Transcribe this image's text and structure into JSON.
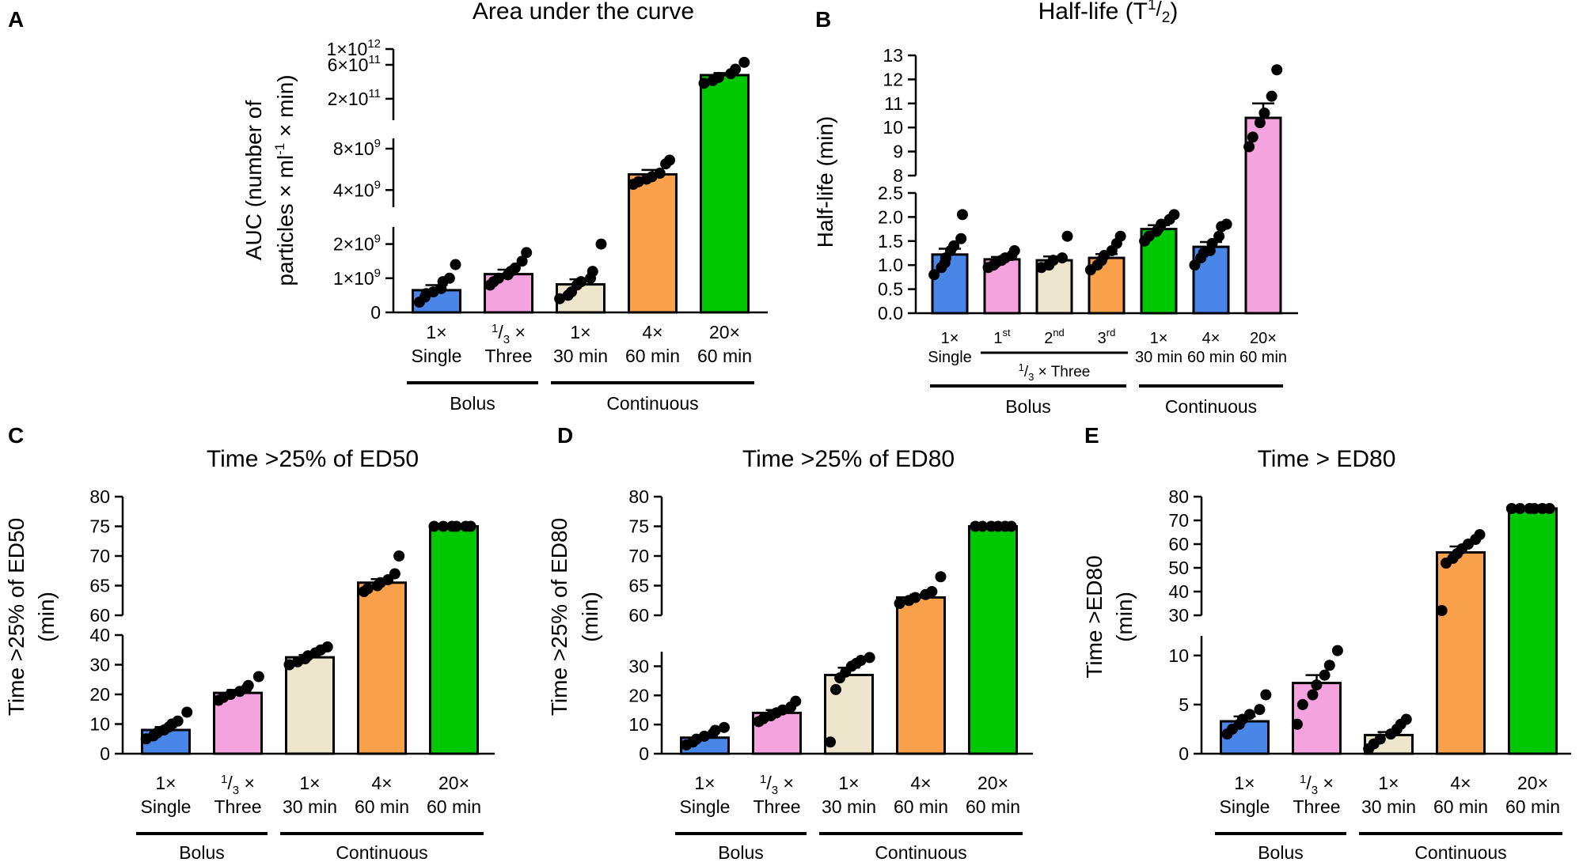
{
  "colors": {
    "blue": "#4a86e8",
    "pink": "#f5a3de",
    "cream": "#ede6cc",
    "orange": "#f9a04a",
    "green": "#00c800",
    "axis": "#000000"
  },
  "chart_data": [
    {
      "panel": "A",
      "type": "bar",
      "title": "Area under the curve",
      "ylabel_line1": "AUC (number of",
      "ylabel_line2": "particles × ml",
      "ylabel_sup": "-1",
      "ylabel_tail": " × min)",
      "categories": [
        {
          "top": "1×",
          "bottom": "Single",
          "frac": ""
        },
        {
          "top": "×",
          "bottom": "Three",
          "frac": "1/3"
        },
        {
          "top": "1×",
          "bottom": "30 min",
          "frac": ""
        },
        {
          "top": "4×",
          "bottom": "60 min",
          "frac": ""
        },
        {
          "top": "20×",
          "bottom": "60 min",
          "frac": ""
        }
      ],
      "bar_colors": [
        "blue",
        "pink",
        "cream",
        "orange",
        "green"
      ],
      "values": [
        650000000.0,
        1120000000.0,
        820000000.0,
        5200000000.0,
        430000000000.0
      ],
      "errors": [
        150000000.0,
        130000000.0,
        150000000.0,
        400000000.0,
        30000000000.0
      ],
      "points": [
        [
          300000000.0,
          450000000.0,
          550000000.0,
          600000000.0,
          700000000.0,
          900000000.0,
          1000000000.0,
          1400000000.0
        ],
        [
          800000000.0,
          900000000.0,
          1000000000.0,
          1100000000.0,
          1200000000.0,
          1300000000.0,
          1500000000.0,
          1750000000.0
        ],
        [
          400000000.0,
          500000000.0,
          600000000.0,
          800000000.0,
          900000000.0,
          1000000000.0,
          1200000000.0,
          2000000000.0
        ],
        [
          4400000000.0,
          4600000000.0,
          4800000000.0,
          5000000000.0,
          5300000000.0,
          6200000000.0,
          6600000000.0
        ],
        [
          330000000000.0,
          360000000000.0,
          400000000000.0,
          450000000000.0,
          520000000000.0,
          650000000000.0
        ]
      ],
      "segments": [
        {
          "range": [
            0,
            2500000000.0
          ],
          "ticks": [
            0,
            1000000000.0,
            2000000000.0
          ],
          "labels": [
            [
              "0",
              ""
            ],
            [
              "1×10",
              "9"
            ],
            [
              "2×10",
              "9"
            ]
          ]
        },
        {
          "range": [
            3000000000.0,
            9500000000.0
          ],
          "ticks": [
            4000000000.0,
            8000000000.0
          ],
          "labels": [
            [
              "4×10",
              "9"
            ],
            [
              "8×10",
              "9"
            ]
          ]
        },
        {
          "range": [
            100000000000.0,
            1000000000000.0
          ],
          "ticks": [
            200000000000.0,
            600000000000.0,
            1000000000000.0
          ],
          "labels": [
            [
              "2×10",
              "11"
            ],
            [
              "6×10",
              "11"
            ],
            [
              "1×10",
              "12"
            ]
          ]
        }
      ],
      "groups": [
        {
          "label": "Bolus",
          "from": 0,
          "to": 1
        },
        {
          "label": "Continuous",
          "from": 2,
          "to": 4
        }
      ]
    },
    {
      "panel": "B",
      "type": "bar",
      "title": "Half-life (T",
      "title_sup": "1",
      "title_sub": "2",
      "title_end": ")",
      "ylabel": "Half-life (min)",
      "categories": [
        {
          "top": "1×",
          "bottom": "Single",
          "ord": ""
        },
        {
          "top": "1",
          "bottom": "",
          "ord": "st"
        },
        {
          "top": "2",
          "bottom": "",
          "ord": "nd"
        },
        {
          "top": "3",
          "bottom": "",
          "ord": "rd"
        },
        {
          "top": "1×",
          "bottom": "30 min",
          "ord": ""
        },
        {
          "top": "4×",
          "bottom": "60 min",
          "ord": ""
        },
        {
          "top": "20×",
          "bottom": "60 min",
          "ord": ""
        }
      ],
      "subgroup": {
        "label": "× Three",
        "frac": "1/3",
        "from": 1,
        "to": 3
      },
      "bar_colors": [
        "blue",
        "pink",
        "cream",
        "orange",
        "green",
        "blue",
        "pink"
      ],
      "values": [
        1.22,
        1.12,
        1.1,
        1.15,
        1.75,
        1.38,
        10.4
      ],
      "errors": [
        0.12,
        0.05,
        0.08,
        0.08,
        0.08,
        0.1,
        0.6
      ],
      "points": [
        [
          0.8,
          0.95,
          1.05,
          1.15,
          1.3,
          1.4,
          1.55,
          2.05
        ],
        [
          0.95,
          1.0,
          1.05,
          1.1,
          1.15,
          1.2,
          1.3
        ],
        [
          0.95,
          1.0,
          1.1,
          1.15,
          1.6
        ],
        [
          0.9,
          1.0,
          1.1,
          1.2,
          1.3,
          1.45,
          1.6
        ],
        [
          1.5,
          1.6,
          1.7,
          1.75,
          1.85,
          1.95,
          2.05
        ],
        [
          1.0,
          1.15,
          1.25,
          1.3,
          1.45,
          1.6,
          1.8,
          1.85
        ],
        [
          9.2,
          9.6,
          10.2,
          10.6,
          11.3,
          12.4
        ]
      ],
      "segments": [
        {
          "range": [
            0,
            2.5
          ],
          "ticks": [
            0,
            0.5,
            1.0,
            1.5,
            2.0,
            2.5
          ],
          "labels": [
            [
              "0.0",
              ""
            ],
            [
              "0.5",
              ""
            ],
            [
              "1.0",
              ""
            ],
            [
              "1.5",
              ""
            ],
            [
              "2.0",
              ""
            ],
            [
              "2.5",
              ""
            ]
          ]
        },
        {
          "range": [
            8,
            13
          ],
          "ticks": [
            8,
            9,
            10,
            11,
            12,
            13
          ],
          "labels": [
            [
              "8",
              ""
            ],
            [
              "9",
              ""
            ],
            [
              "10",
              ""
            ],
            [
              "11",
              ""
            ],
            [
              "12",
              ""
            ],
            [
              "13",
              ""
            ]
          ]
        }
      ],
      "groups": [
        {
          "label": "Bolus",
          "from": 0,
          "to": 3
        },
        {
          "label": "Continuous",
          "from": 4,
          "to": 6
        }
      ]
    },
    {
      "panel": "C",
      "type": "bar",
      "title": "Time >25% of ED50",
      "ylabel_line1": "Time >25% of ED50",
      "ylabel_line2": "(min)",
      "categories": [
        {
          "top": "1×",
          "bottom": "Single",
          "frac": ""
        },
        {
          "top": "×",
          "bottom": "Three",
          "frac": "1/3"
        },
        {
          "top": "1×",
          "bottom": "30 min",
          "frac": ""
        },
        {
          "top": "4×",
          "bottom": "60 min",
          "frac": ""
        },
        {
          "top": "20×",
          "bottom": "60 min",
          "frac": ""
        }
      ],
      "bar_colors": [
        "blue",
        "pink",
        "cream",
        "orange",
        "green"
      ],
      "values": [
        8,
        20.5,
        32.5,
        65.5,
        75
      ],
      "errors": [
        1.0,
        1.0,
        0.8,
        0.6,
        0
      ],
      "points": [
        [
          5,
          6,
          7,
          8,
          9,
          10,
          11,
          14
        ],
        [
          18,
          19,
          20,
          21,
          22,
          23,
          26
        ],
        [
          30,
          31,
          32,
          33,
          34,
          35,
          36
        ],
        [
          64,
          64.5,
          65,
          65.5,
          66,
          67,
          70
        ],
        [
          75,
          75,
          75,
          75,
          75,
          75
        ]
      ],
      "segments": [
        {
          "range": [
            0,
            40
          ],
          "ticks": [
            0,
            10,
            20,
            30,
            40
          ],
          "labels": [
            [
              "0",
              ""
            ],
            [
              "10",
              ""
            ],
            [
              "20",
              ""
            ],
            [
              "30",
              ""
            ],
            [
              "40",
              ""
            ]
          ]
        },
        {
          "range": [
            60,
            80
          ],
          "ticks": [
            60,
            65,
            70,
            75,
            80
          ],
          "labels": [
            [
              "60",
              ""
            ],
            [
              "65",
              ""
            ],
            [
              "70",
              ""
            ],
            [
              "75",
              ""
            ],
            [
              "80",
              ""
            ]
          ]
        }
      ],
      "groups": [
        {
          "label": "Bolus",
          "from": 0,
          "to": 1
        },
        {
          "label": "Continuous",
          "from": 2,
          "to": 4
        }
      ]
    },
    {
      "panel": "D",
      "type": "bar",
      "title": "Time >25% of ED80",
      "ylabel_line1": "Time >25% of ED80",
      "ylabel_line2": "(min)",
      "categories": [
        {
          "top": "1×",
          "bottom": "Single",
          "frac": ""
        },
        {
          "top": "×",
          "bottom": "Three",
          "frac": "1/3"
        },
        {
          "top": "1×",
          "bottom": "30 min",
          "frac": ""
        },
        {
          "top": "4×",
          "bottom": "60 min",
          "frac": ""
        },
        {
          "top": "20×",
          "bottom": "60 min",
          "frac": ""
        }
      ],
      "bar_colors": [
        "blue",
        "pink",
        "cream",
        "orange",
        "green"
      ],
      "values": [
        5.5,
        14,
        27,
        63,
        75
      ],
      "errors": [
        0.8,
        1.0,
        2.5,
        0.5,
        0
      ],
      "points": [
        [
          3,
          4,
          5,
          6,
          7,
          8,
          9
        ],
        [
          11,
          12,
          13,
          14,
          15,
          16,
          18
        ],
        [
          4,
          22,
          26,
          28,
          30,
          31,
          32,
          33
        ],
        [
          62,
          62.5,
          63,
          63.5,
          64,
          66.5
        ],
        [
          75,
          75,
          75,
          75,
          75,
          75
        ]
      ],
      "segments": [
        {
          "range": [
            0,
            35
          ],
          "ticks": [
            0,
            10,
            20,
            30
          ],
          "labels": [
            [
              "0",
              ""
            ],
            [
              "10",
              ""
            ],
            [
              "20",
              ""
            ],
            [
              "30",
              ""
            ]
          ]
        },
        {
          "range": [
            60,
            80
          ],
          "ticks": [
            60,
            65,
            70,
            75,
            80
          ],
          "labels": [
            [
              "60",
              ""
            ],
            [
              "65",
              ""
            ],
            [
              "70",
              ""
            ],
            [
              "75",
              ""
            ],
            [
              "80",
              ""
            ]
          ]
        }
      ],
      "groups": [
        {
          "label": "Bolus",
          "from": 0,
          "to": 1
        },
        {
          "label": "Continuous",
          "from": 2,
          "to": 4
        }
      ]
    },
    {
      "panel": "E",
      "type": "bar",
      "title": "Time > ED80",
      "ylabel_line1": "Time >ED80",
      "ylabel_line2": "(min)",
      "categories": [
        {
          "top": "1×",
          "bottom": "Single",
          "frac": ""
        },
        {
          "top": "×",
          "bottom": "Three",
          "frac": "1/3"
        },
        {
          "top": "1×",
          "bottom": "30 min",
          "frac": ""
        },
        {
          "top": "4×",
          "bottom": "60 min",
          "frac": ""
        },
        {
          "top": "20×",
          "bottom": "60 min",
          "frac": ""
        }
      ],
      "bar_colors": [
        "blue",
        "pink",
        "cream",
        "orange",
        "green"
      ],
      "values": [
        3.3,
        7.2,
        1.9,
        56.5,
        75
      ],
      "errors": [
        0.5,
        0.8,
        0.3,
        2.5,
        0
      ],
      "points": [
        [
          2,
          2.5,
          3,
          3.5,
          4,
          4.5,
          6
        ],
        [
          3,
          5,
          6,
          7,
          8,
          9,
          10.5
        ],
        [
          0.5,
          1,
          1.5,
          2,
          2.5,
          3,
          3.5
        ],
        [
          32,
          52,
          54,
          56,
          58,
          60,
          62,
          64
        ],
        [
          75,
          75,
          75,
          75,
          75,
          75
        ]
      ],
      "segments": [
        {
          "range": [
            0,
            12
          ],
          "ticks": [
            0,
            5,
            10
          ],
          "labels": [
            [
              "0",
              ""
            ],
            [
              "5",
              ""
            ],
            [
              "10",
              ""
            ]
          ]
        },
        {
          "range": [
            30,
            80
          ],
          "ticks": [
            30,
            40,
            50,
            60,
            70,
            80
          ],
          "labels": [
            [
              "30",
              ""
            ],
            [
              "40",
              ""
            ],
            [
              "50",
              ""
            ],
            [
              "60",
              ""
            ],
            [
              "70",
              ""
            ],
            [
              "80",
              ""
            ]
          ]
        }
      ],
      "groups": [
        {
          "label": "Bolus",
          "from": 0,
          "to": 1
        },
        {
          "label": "Continuous",
          "from": 2,
          "to": 4
        }
      ]
    }
  ]
}
